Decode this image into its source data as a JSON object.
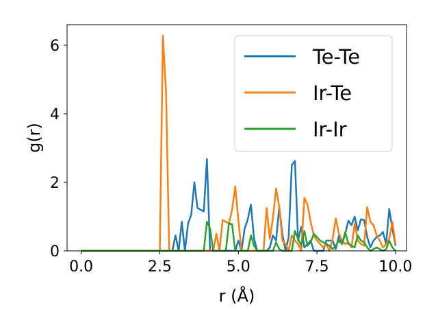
{
  "chart_data": {
    "type": "line",
    "xlabel": "r (Å)",
    "ylabel": "g(r)",
    "xlim": [
      -0.45,
      10.35
    ],
    "ylim": [
      0,
      6.6
    ],
    "xticks": [
      0.0,
      2.5,
      5.0,
      7.5,
      10.0
    ],
    "xtick_labels": [
      "0.0",
      "2.5",
      "5.0",
      "7.5",
      "10.0"
    ],
    "yticks": [
      0,
      2,
      4,
      6
    ],
    "ytick_labels": [
      "0",
      "2",
      "4",
      "6"
    ],
    "grid": false,
    "legend_position": "top-right",
    "series": [
      {
        "name": "Te-Te",
        "color": "#1f77b4",
        "points": [
          [
            0.0,
            0
          ],
          [
            2.9,
            0
          ],
          [
            3.0,
            0.45
          ],
          [
            3.1,
            0
          ],
          [
            3.2,
            0.85
          ],
          [
            3.3,
            0
          ],
          [
            3.4,
            0.8
          ],
          [
            3.5,
            1.05
          ],
          [
            3.6,
            2.0
          ],
          [
            3.7,
            1.25
          ],
          [
            3.8,
            1.2
          ],
          [
            3.9,
            1.15
          ],
          [
            4.0,
            2.68
          ],
          [
            4.1,
            0
          ],
          [
            4.9,
            0
          ],
          [
            5.0,
            0.3
          ],
          [
            5.1,
            0
          ],
          [
            5.2,
            0.65
          ],
          [
            5.3,
            0.92
          ],
          [
            5.4,
            1.35
          ],
          [
            5.5,
            0.35
          ],
          [
            5.6,
            0
          ],
          [
            5.9,
            0
          ],
          [
            6.0,
            0.1
          ],
          [
            6.1,
            0.45
          ],
          [
            6.2,
            0.3
          ],
          [
            6.3,
            1.28
          ],
          [
            6.4,
            0.5
          ],
          [
            6.5,
            0
          ],
          [
            6.6,
            0.4
          ],
          [
            6.7,
            2.5
          ],
          [
            6.8,
            2.62
          ],
          [
            6.9,
            0.3
          ],
          [
            7.0,
            0.7
          ],
          [
            7.1,
            0.1
          ],
          [
            7.2,
            0.2
          ],
          [
            7.3,
            0.3
          ],
          [
            7.4,
            0
          ],
          [
            7.7,
            0
          ],
          [
            7.8,
            0.3
          ],
          [
            8.0,
            0.3
          ],
          [
            8.1,
            0.05
          ],
          [
            8.2,
            0.45
          ],
          [
            8.3,
            0.2
          ],
          [
            8.4,
            0.5
          ],
          [
            8.5,
            0.88
          ],
          [
            8.6,
            0.75
          ],
          [
            8.7,
            1.0
          ],
          [
            8.8,
            0.6
          ],
          [
            8.9,
            0.92
          ],
          [
            9.0,
            0.9
          ],
          [
            9.1,
            0.4
          ],
          [
            9.2,
            0.1
          ],
          [
            9.3,
            0.3
          ],
          [
            9.4,
            0.4
          ],
          [
            9.5,
            0.45
          ],
          [
            9.6,
            0.55
          ],
          [
            9.7,
            0.2
          ],
          [
            9.8,
            1.22
          ],
          [
            9.9,
            0.65
          ],
          [
            10.0,
            0.15
          ]
        ]
      },
      {
        "name": "Ir-Te",
        "color": "#ff7f0e",
        "points": [
          [
            0.0,
            0
          ],
          [
            2.5,
            0
          ],
          [
            2.6,
            6.28
          ],
          [
            2.7,
            4.6
          ],
          [
            2.8,
            0
          ],
          [
            4.2,
            0
          ],
          [
            4.3,
            0.5
          ],
          [
            4.4,
            0
          ],
          [
            4.5,
            0.9
          ],
          [
            4.6,
            0.85
          ],
          [
            4.7,
            0.8
          ],
          [
            4.8,
            1.2
          ],
          [
            4.9,
            1.88
          ],
          [
            5.0,
            0.9
          ],
          [
            5.1,
            0
          ],
          [
            5.8,
            0
          ],
          [
            5.9,
            1.25
          ],
          [
            6.0,
            0.35
          ],
          [
            6.1,
            0.95
          ],
          [
            6.2,
            1.82
          ],
          [
            6.3,
            1.3
          ],
          [
            6.4,
            0.3
          ],
          [
            6.5,
            0.2
          ],
          [
            6.6,
            0
          ],
          [
            6.7,
            0.45
          ],
          [
            6.8,
            0.3
          ],
          [
            6.9,
            0.2
          ],
          [
            7.0,
            0
          ],
          [
            7.1,
            1.55
          ],
          [
            7.2,
            1.35
          ],
          [
            7.3,
            0.85
          ],
          [
            7.4,
            0.45
          ],
          [
            7.5,
            0.3
          ],
          [
            7.6,
            0.2
          ],
          [
            7.7,
            0.1
          ],
          [
            7.8,
            0.2
          ],
          [
            7.9,
            0
          ],
          [
            8.0,
            0.35
          ],
          [
            8.1,
            0.95
          ],
          [
            8.2,
            0.5
          ],
          [
            8.3,
            0.3
          ],
          [
            8.4,
            0.2
          ],
          [
            8.5,
            0.25
          ],
          [
            8.6,
            0.1
          ],
          [
            8.7,
            0.8
          ],
          [
            8.8,
            0.3
          ],
          [
            8.9,
            0.2
          ],
          [
            9.0,
            0.15
          ],
          [
            9.1,
            1.28
          ],
          [
            9.2,
            0.85
          ],
          [
            9.3,
            0.75
          ],
          [
            9.4,
            0.45
          ],
          [
            9.5,
            0.3
          ],
          [
            9.6,
            0.1
          ],
          [
            9.7,
            0.2
          ],
          [
            9.8,
            0.35
          ],
          [
            9.9,
            0.85
          ],
          [
            10.0,
            0.2
          ]
        ]
      },
      {
        "name": "Ir-Ir",
        "color": "#2ca02c",
        "points": [
          [
            0.0,
            0
          ],
          [
            3.9,
            0
          ],
          [
            4.0,
            0.85
          ],
          [
            4.1,
            0.65
          ],
          [
            4.2,
            0
          ],
          [
            4.6,
            0
          ],
          [
            4.7,
            0.8
          ],
          [
            4.8,
            0.78
          ],
          [
            4.9,
            0
          ],
          [
            5.3,
            0
          ],
          [
            5.4,
            0.45
          ],
          [
            5.5,
            0.15
          ],
          [
            5.6,
            0
          ],
          [
            6.1,
            0
          ],
          [
            6.2,
            0.25
          ],
          [
            6.3,
            0.05
          ],
          [
            6.4,
            0
          ],
          [
            6.7,
            0
          ],
          [
            6.8,
            0.58
          ],
          [
            6.9,
            0.35
          ],
          [
            7.0,
            0.15
          ],
          [
            7.1,
            0.58
          ],
          [
            7.2,
            0.15
          ],
          [
            7.3,
            0.25
          ],
          [
            7.4,
            0.5
          ],
          [
            7.5,
            0.4
          ],
          [
            7.6,
            0.3
          ],
          [
            7.7,
            0.25
          ],
          [
            7.8,
            0.2
          ],
          [
            7.9,
            0.15
          ],
          [
            8.0,
            0.05
          ],
          [
            8.1,
            0.15
          ],
          [
            8.2,
            0.3
          ],
          [
            8.3,
            0.2
          ],
          [
            8.4,
            0.55
          ],
          [
            8.5,
            0.2
          ],
          [
            8.6,
            0.15
          ],
          [
            8.7,
            0.1
          ],
          [
            8.8,
            0.45
          ],
          [
            8.9,
            0.3
          ],
          [
            9.0,
            0.25
          ],
          [
            9.1,
            0.1
          ],
          [
            9.2,
            0
          ],
          [
            9.3,
            0.05
          ],
          [
            9.4,
            0.1
          ],
          [
            9.5,
            0.05
          ],
          [
            9.6,
            0
          ],
          [
            9.7,
            0.05
          ],
          [
            9.8,
            0.3
          ],
          [
            9.9,
            0.1
          ],
          [
            10.0,
            0
          ]
        ]
      }
    ]
  }
}
